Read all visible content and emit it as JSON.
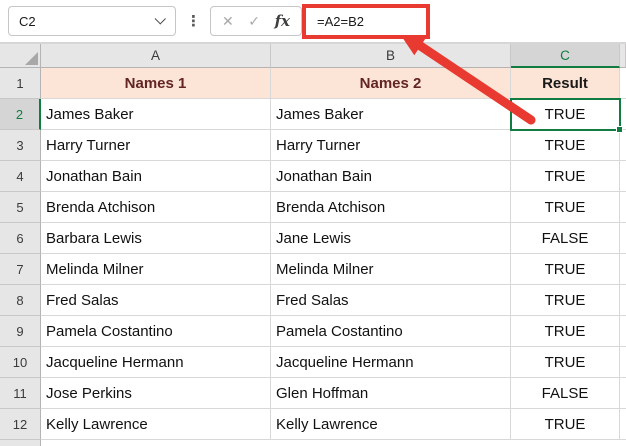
{
  "formula_bar": {
    "name_box_value": "C2",
    "formula": "=A2=B2",
    "cancel_icon": "✕",
    "enter_icon": "✓",
    "fx_icon": "fx",
    "more_dots_icon": "⋮"
  },
  "sheet": {
    "columns": [
      "A",
      "B",
      "C"
    ],
    "selected_cell": "C2",
    "header_row": {
      "row_number": "1",
      "a": "Names 1",
      "b": "Names 2",
      "c": "Result"
    },
    "rows": [
      {
        "n": "2",
        "a": "James Baker",
        "b": "James Baker",
        "c": "TRUE"
      },
      {
        "n": "3",
        "a": "Harry Turner",
        "b": "Harry Turner",
        "c": "TRUE"
      },
      {
        "n": "4",
        "a": "Jonathan Bain",
        "b": "Jonathan Bain",
        "c": "TRUE"
      },
      {
        "n": "5",
        "a": "Brenda Atchison",
        "b": "Brenda Atchison",
        "c": "TRUE"
      },
      {
        "n": "6",
        "a": "Barbara Lewis",
        "b": "Jane Lewis",
        "c": "FALSE"
      },
      {
        "n": "7",
        "a": "Melinda Milner",
        "b": "Melinda Milner",
        "c": "TRUE"
      },
      {
        "n": "8",
        "a": "Fred Salas",
        "b": "Fred Salas",
        "c": "TRUE"
      },
      {
        "n": "9",
        "a": "Pamela Costantino",
        "b": "Pamela Costantino",
        "c": "TRUE"
      },
      {
        "n": "10",
        "a": "Jacqueline Hermann",
        "b": "Jacqueline Hermann",
        "c": "TRUE"
      },
      {
        "n": "11",
        "a": "Jose Perkins",
        "b": "Glen Hoffman",
        "c": "FALSE"
      },
      {
        "n": "12",
        "a": "Kelly Lawrence",
        "b": "Kelly Lawrence",
        "c": "TRUE"
      }
    ]
  },
  "colors": {
    "accent_green": "#107C41",
    "header_fill": "#FCE4D6",
    "header_text": "#632523",
    "result_header_text": "#1A1A1A",
    "annotation_red": "#E83A30",
    "col_header_bg": "#E7E6E6",
    "selected_header_bg": "#D5D5D5",
    "gridline": "#D8D8D8"
  }
}
